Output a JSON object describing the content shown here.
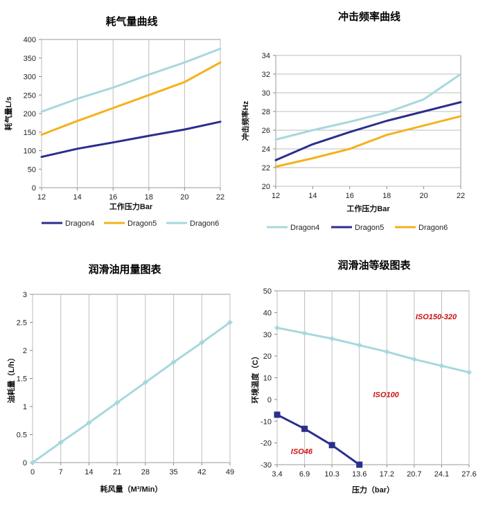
{
  "chart_data": [
    {
      "type": "line",
      "title": "耗气量曲线",
      "xlabel": "工作压力Bar",
      "ylabel": "耗气量L/s",
      "xlim": [
        12,
        22
      ],
      "ylim": [
        0,
        400
      ],
      "x_ticks": [
        12,
        14,
        16,
        18,
        20,
        22
      ],
      "y_ticks": [
        0,
        50,
        100,
        150,
        200,
        250,
        300,
        350,
        400
      ],
      "grid": "vertical",
      "legend": "bottom",
      "series": [
        {
          "name": "Dragon4",
          "color": "#2b2e8c",
          "x": [
            12,
            14,
            16,
            18,
            20,
            22
          ],
          "values": [
            83,
            105,
            122,
            140,
            157,
            178
          ]
        },
        {
          "name": "Dragon5",
          "color": "#f5b11b",
          "x": [
            12,
            14,
            16,
            18,
            20,
            22
          ],
          "values": [
            143,
            180,
            215,
            250,
            285,
            338
          ]
        },
        {
          "name": "Dragon6",
          "color": "#a6d8dd",
          "x": [
            12,
            14,
            16,
            18,
            20,
            22
          ],
          "values": [
            205,
            240,
            270,
            305,
            338,
            375
          ]
        }
      ]
    },
    {
      "type": "line",
      "title": "冲击频率曲线",
      "xlabel": "工作压力Bar",
      "ylabel": "冲击频率Hz",
      "xlim": [
        12,
        22
      ],
      "ylim": [
        20,
        34
      ],
      "x_ticks": [
        12,
        14,
        16,
        18,
        20,
        22
      ],
      "y_ticks": [
        20,
        22,
        24,
        26,
        28,
        30,
        32,
        34
      ],
      "grid": "horizontal",
      "legend": "bottom",
      "series": [
        {
          "name": "Dragon4",
          "color": "#a6d8dd",
          "x": [
            12,
            14,
            16,
            18,
            20,
            22
          ],
          "values": [
            25.0,
            26.0,
            26.9,
            27.9,
            29.3,
            32.0
          ]
        },
        {
          "name": "Dragon5",
          "color": "#2b2e8c",
          "x": [
            12,
            14,
            16,
            18,
            20,
            22
          ],
          "values": [
            22.8,
            24.5,
            25.8,
            27.0,
            28.0,
            29.0
          ]
        },
        {
          "name": "Dragon6",
          "color": "#f5b11b",
          "x": [
            12,
            14,
            16,
            18,
            20,
            22
          ],
          "values": [
            22.1,
            23.0,
            24.0,
            25.5,
            26.5,
            27.5
          ]
        }
      ]
    },
    {
      "type": "line",
      "title": "润滑油用量图表",
      "xlabel": "耗风量（M³/Min）",
      "ylabel": "油耗量（L/h）",
      "xlim": [
        0,
        49
      ],
      "ylim": [
        0,
        3
      ],
      "x_ticks": [
        0,
        7,
        14,
        21,
        28,
        35,
        42,
        49
      ],
      "y_ticks": [
        0,
        0.5,
        1,
        1.5,
        2,
        2.5,
        3
      ],
      "grid": "vertical",
      "series": [
        {
          "color": "#a6d8dd",
          "x": [
            0,
            7,
            14,
            21,
            28,
            35,
            42,
            49
          ],
          "values": [
            0,
            0.36,
            0.71,
            1.07,
            1.43,
            1.79,
            2.14,
            2.5
          ]
        }
      ]
    },
    {
      "type": "line",
      "title": "润滑油等级图表",
      "xlabel": "压力（bar）",
      "ylabel": "环境温度（C）",
      "categories": [
        "3.4",
        "6.9",
        "10.3",
        "13.6",
        "17.2",
        "20.7",
        "24.1",
        "27.6"
      ],
      "ylim": [
        -30,
        50
      ],
      "y_ticks": [
        -30,
        -20,
        -10,
        0,
        10,
        20,
        30,
        40,
        50
      ],
      "grid": "vertical",
      "series": [
        {
          "color": "#a6d8dd",
          "marker": "diamond",
          "values": [
            33,
            30.5,
            28,
            25,
            22,
            18.5,
            15.5,
            12.5
          ]
        },
        {
          "color": "#2b2e8c",
          "marker": "square",
          "values": [
            -7,
            -13.5,
            -21,
            -30,
            null,
            null,
            null,
            null
          ]
        }
      ],
      "annotations": [
        {
          "text": "ISO150-320",
          "at": [
            5.05,
            37
          ]
        },
        {
          "text": "ISO100",
          "at": [
            3.5,
            1
          ]
        },
        {
          "text": "ISO46",
          "at": [
            0.5,
            -25
          ]
        }
      ]
    }
  ]
}
